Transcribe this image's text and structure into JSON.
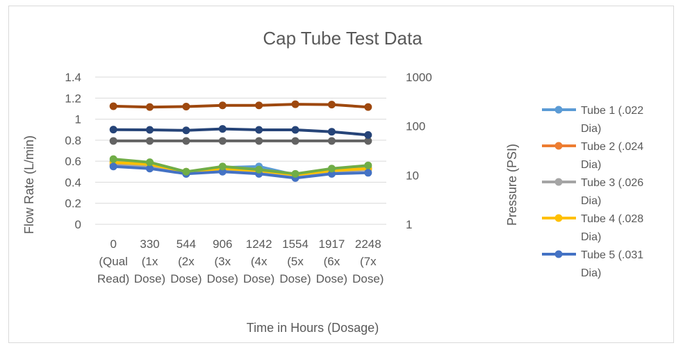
{
  "chart_data": {
    "type": "line",
    "title": "Cap Tube Test Data",
    "xlabel": "Time in Hours (Dosage)",
    "ylabel": "Flow Rate (L/min)",
    "y2label": "Pressure (PSI)",
    "ylim": [
      0,
      1.4
    ],
    "yticks": [
      "0",
      "0.2",
      "0.4",
      "0.6",
      "0.8",
      "1",
      "1.2",
      "1.4"
    ],
    "y2scale": "log",
    "y2lim": [
      1,
      1000
    ],
    "y2ticks": [
      "1",
      "10",
      "100",
      "1000"
    ],
    "grid": "horizontal",
    "legend": "right",
    "categories": [
      [
        "0",
        "(Qual",
        "Read)"
      ],
      [
        "330",
        "(1x",
        "Dose)"
      ],
      [
        "544",
        "(2x",
        "Dose)"
      ],
      [
        "906",
        "(3x",
        "Dose)"
      ],
      [
        "1242",
        "(4x",
        "Dose)"
      ],
      [
        "1554",
        "(5x",
        "Dose)"
      ],
      [
        "1917",
        "(6x",
        "Dose)"
      ],
      [
        "2248",
        "(7x",
        "Dose)"
      ]
    ],
    "series": [
      {
        "name": "Tube 1 (.022 Dia)",
        "color": "#5b9bd5",
        "axis": "left",
        "in_legend": true,
        "values": [
          0.6,
          0.58,
          0.48,
          0.54,
          0.55,
          0.47,
          0.52,
          0.54
        ]
      },
      {
        "name": "Tube 2 (.024 Dia)",
        "color": "#ed7d31",
        "axis": "left",
        "in_legend": true,
        "values": [
          0.57,
          0.56,
          0.49,
          0.52,
          0.51,
          0.47,
          0.51,
          0.53
        ]
      },
      {
        "name": "Tube 3 (.026 Dia)",
        "color": "#a5a5a5",
        "axis": "left",
        "in_legend": true,
        "values": [
          0.56,
          0.55,
          0.49,
          0.52,
          0.5,
          0.46,
          0.5,
          0.52
        ]
      },
      {
        "name": "Tube 4 (.028 Dia)",
        "color": "#ffc000",
        "axis": "left",
        "in_legend": true,
        "values": [
          0.59,
          0.57,
          0.5,
          0.53,
          0.51,
          0.47,
          0.51,
          0.53
        ]
      },
      {
        "name": "Tube 5 (.031 Dia)",
        "color": "#4472c4",
        "axis": "left",
        "in_legend": true,
        "values": [
          0.55,
          0.53,
          0.48,
          0.5,
          0.48,
          0.44,
          0.48,
          0.49
        ]
      },
      {
        "name": "",
        "color": "#70ad47",
        "axis": "left",
        "in_legend": false,
        "values": [
          0.62,
          0.59,
          0.5,
          0.55,
          0.52,
          0.48,
          0.53,
          0.56
        ]
      },
      {
        "name": "",
        "color": "#9e480e",
        "axis": "right",
        "in_legend": false,
        "values": [
          255,
          245,
          250,
          265,
          265,
          280,
          275,
          245
        ]
      },
      {
        "name": "",
        "color": "#636363",
        "axis": "right",
        "in_legend": false,
        "values": [
          50,
          50,
          50,
          50,
          50,
          50,
          50,
          50
        ]
      },
      {
        "name": "",
        "color": "#264478",
        "axis": "right",
        "in_legend": false,
        "values": [
          85,
          84,
          82,
          88,
          84,
          84,
          77,
          66
        ]
      }
    ]
  }
}
